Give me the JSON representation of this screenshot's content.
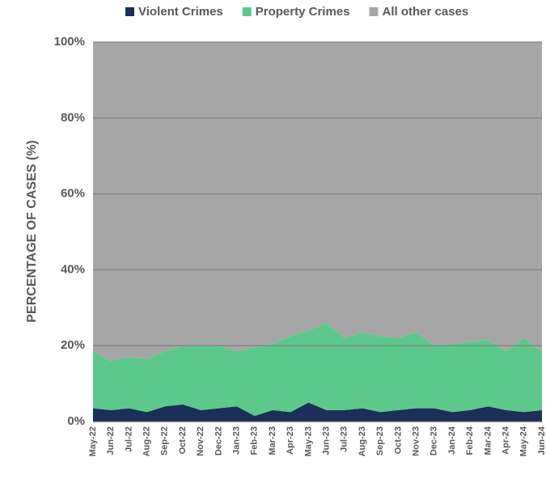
{
  "chart_data": {
    "type": "stacked_area",
    "y_label": "PERCENTAGE OF CASES (%)",
    "categories": [
      "May-22",
      "Jun-22",
      "Jul-22",
      "Aug-22",
      "Sep-22",
      "Oct-22",
      "Nov-22",
      "Dec-22",
      "Jan-23",
      "Feb-23",
      "Mar-23",
      "Apr-23",
      "May-23",
      "Jun-23",
      "Jul-23",
      "Aug-23",
      "Sep-23",
      "Oct-23",
      "Nov-23",
      "Dec-23",
      "Jan-24",
      "Feb-24",
      "Mar-24",
      "Apr-24",
      "May-24",
      "Jun-24"
    ],
    "series": [
      {
        "name": "Violent Crimes",
        "color": "#1b2f5a",
        "values": [
          3.5,
          3,
          3.5,
          2.5,
          4,
          4.5,
          3,
          3.5,
          4,
          1.5,
          3,
          2.5,
          5,
          3,
          3,
          3.5,
          2.5,
          3,
          3.5,
          3.5,
          2.5,
          3,
          4,
          3,
          2.5,
          3
        ]
      },
      {
        "name": "Property Crimes",
        "color": "#5cc98b",
        "values": [
          15,
          13,
          13.5,
          14,
          14.5,
          15.5,
          17,
          16.5,
          14.5,
          18,
          17.5,
          20,
          19,
          23,
          19,
          20,
          20,
          19,
          20,
          16.5,
          18,
          18,
          17.5,
          15.5,
          19.5,
          15.5
        ]
      },
      {
        "name": "All other cases",
        "color": "#a6a6a6",
        "values": [
          81.5,
          84,
          83,
          83.5,
          81.5,
          80,
          80,
          80,
          81.5,
          80.5,
          79.5,
          77.5,
          76,
          74,
          78,
          76.5,
          77.5,
          78,
          76.5,
          80,
          79.5,
          79,
          78.5,
          81.5,
          78,
          81.5
        ]
      }
    ],
    "ylim": [
      0,
      100
    ],
    "yticks": [
      {
        "value": 0,
        "label": "0%"
      },
      {
        "value": 20,
        "label": "20%"
      },
      {
        "value": 40,
        "label": "40%"
      },
      {
        "value": 60,
        "label": "60%"
      },
      {
        "value": 80,
        "label": "80%"
      },
      {
        "value": 100,
        "label": "100%"
      }
    ],
    "grid": true,
    "legend": "top"
  }
}
